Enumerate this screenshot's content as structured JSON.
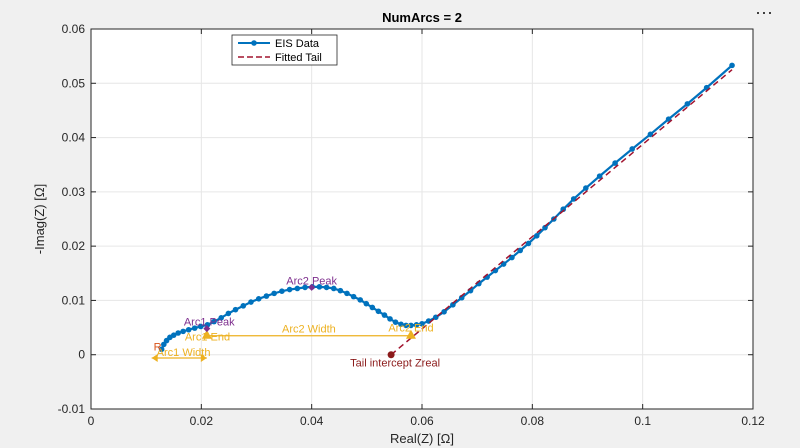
{
  "toolbar": {
    "more_label": "⋯"
  },
  "chart_data": {
    "type": "line",
    "title": "NumArcs = 2",
    "xlabel": "Real(Z) [Ω]",
    "ylabel": "-Imag(Z) [Ω]",
    "xlim": [
      0,
      0.12
    ],
    "ylim": [
      -0.01,
      0.06
    ],
    "xticks": [
      0,
      0.02,
      0.04,
      0.06,
      0.08,
      0.1,
      0.12
    ],
    "xtick_labels": [
      "0",
      "0.02",
      "0.04",
      "0.06",
      "0.08",
      "0.1",
      "0.12"
    ],
    "yticks": [
      -0.01,
      0,
      0.01,
      0.02,
      0.03,
      0.04,
      0.05,
      0.06
    ],
    "ytick_labels": [
      "-0.01",
      "0",
      "0.01",
      "0.02",
      "0.03",
      "0.04",
      "0.05",
      "0.06"
    ],
    "grid": true,
    "legend_position": "top-left",
    "series": [
      {
        "name": "EIS Data",
        "color": "#0072BD",
        "style": "line-with-markers",
        "x": [
          0.0128,
          0.0132,
          0.0137,
          0.0143,
          0.015,
          0.0158,
          0.0167,
          0.0177,
          0.0188,
          0.0199,
          0.0211,
          0.0223,
          0.0236,
          0.0249,
          0.0262,
          0.0276,
          0.029,
          0.0304,
          0.0318,
          0.0332,
          0.0346,
          0.036,
          0.0374,
          0.0388,
          0.0401,
          0.0414,
          0.0427,
          0.044,
          0.0452,
          0.0464,
          0.0476,
          0.0488,
          0.0499,
          0.051,
          0.0521,
          0.0532,
          0.0542,
          0.0552,
          0.0562,
          0.0571,
          0.058,
          0.059,
          0.06,
          0.0612,
          0.0625,
          0.064,
          0.0656,
          0.0672,
          0.0688,
          0.0703,
          0.0718,
          0.0733,
          0.0748,
          0.0763,
          0.0778,
          0.0793,
          0.0808,
          0.0823,
          0.0839,
          0.0856,
          0.0875,
          0.0897,
          0.0922,
          0.095,
          0.0981,
          0.1014,
          0.1047,
          0.1081,
          0.1116,
          0.1162
        ],
        "y": [
          0.001,
          0.0019,
          0.0026,
          0.0032,
          0.0036,
          0.004,
          0.0043,
          0.0046,
          0.0049,
          0.0052,
          0.0055,
          0.0061,
          0.0068,
          0.0076,
          0.0083,
          0.009,
          0.0097,
          0.0103,
          0.0108,
          0.0113,
          0.0117,
          0.012,
          0.0122,
          0.0124,
          0.0125,
          0.0125,
          0.0124,
          0.0122,
          0.0118,
          0.0113,
          0.0107,
          0.0101,
          0.0094,
          0.0087,
          0.008,
          0.0073,
          0.0066,
          0.006,
          0.0056,
          0.0054,
          0.0054,
          0.0055,
          0.0057,
          0.0062,
          0.0069,
          0.0079,
          0.0092,
          0.0105,
          0.0118,
          0.0131,
          0.0143,
          0.0155,
          0.0167,
          0.0179,
          0.0192,
          0.0205,
          0.0219,
          0.0234,
          0.025,
          0.0268,
          0.0287,
          0.0307,
          0.0329,
          0.0353,
          0.0379,
          0.0406,
          0.0434,
          0.0462,
          0.0492,
          0.0533
        ]
      },
      {
        "name": "Fitted Tail",
        "color": "#A2142F",
        "style": "dashed",
        "x": [
          0.0544,
          0.1162
        ],
        "y": [
          0.0,
          0.0525
        ]
      }
    ],
    "annotations": [
      {
        "text": "Arc1 Peak",
        "x": 0.021,
        "y": 0.0048,
        "color": "#7E2F8E",
        "marker": "diamond"
      },
      {
        "text": "Arc1 End",
        "x": 0.021,
        "y": 0.0035,
        "color": "#EDB120",
        "marker": "triangle"
      },
      {
        "text": "Arc1 Width",
        "x1": 0.011,
        "x2": 0.021,
        "y": -0.0006,
        "color": "#EDB120",
        "arrow": "double"
      },
      {
        "text": "Arc2 Peak",
        "x": 0.04,
        "y": 0.0124,
        "color": "#7E2F8E",
        "marker": "diamond"
      },
      {
        "text": "Arc2 End",
        "x": 0.058,
        "y": 0.0035,
        "color": "#EDB120",
        "marker": "triangle"
      },
      {
        "text": "Arc2 Width",
        "x1": 0.021,
        "x2": 0.058,
        "y": 0.0035,
        "color": "#EDB120",
        "arrow": "line"
      },
      {
        "text": "R",
        "x": 0.0128,
        "y": 0.001,
        "color": "#D95319",
        "marker": "none"
      },
      {
        "text": "Tail intercept Zreal",
        "x": 0.0544,
        "y": 0.0,
        "color": "#8B1A1A",
        "marker": "dot"
      }
    ]
  }
}
